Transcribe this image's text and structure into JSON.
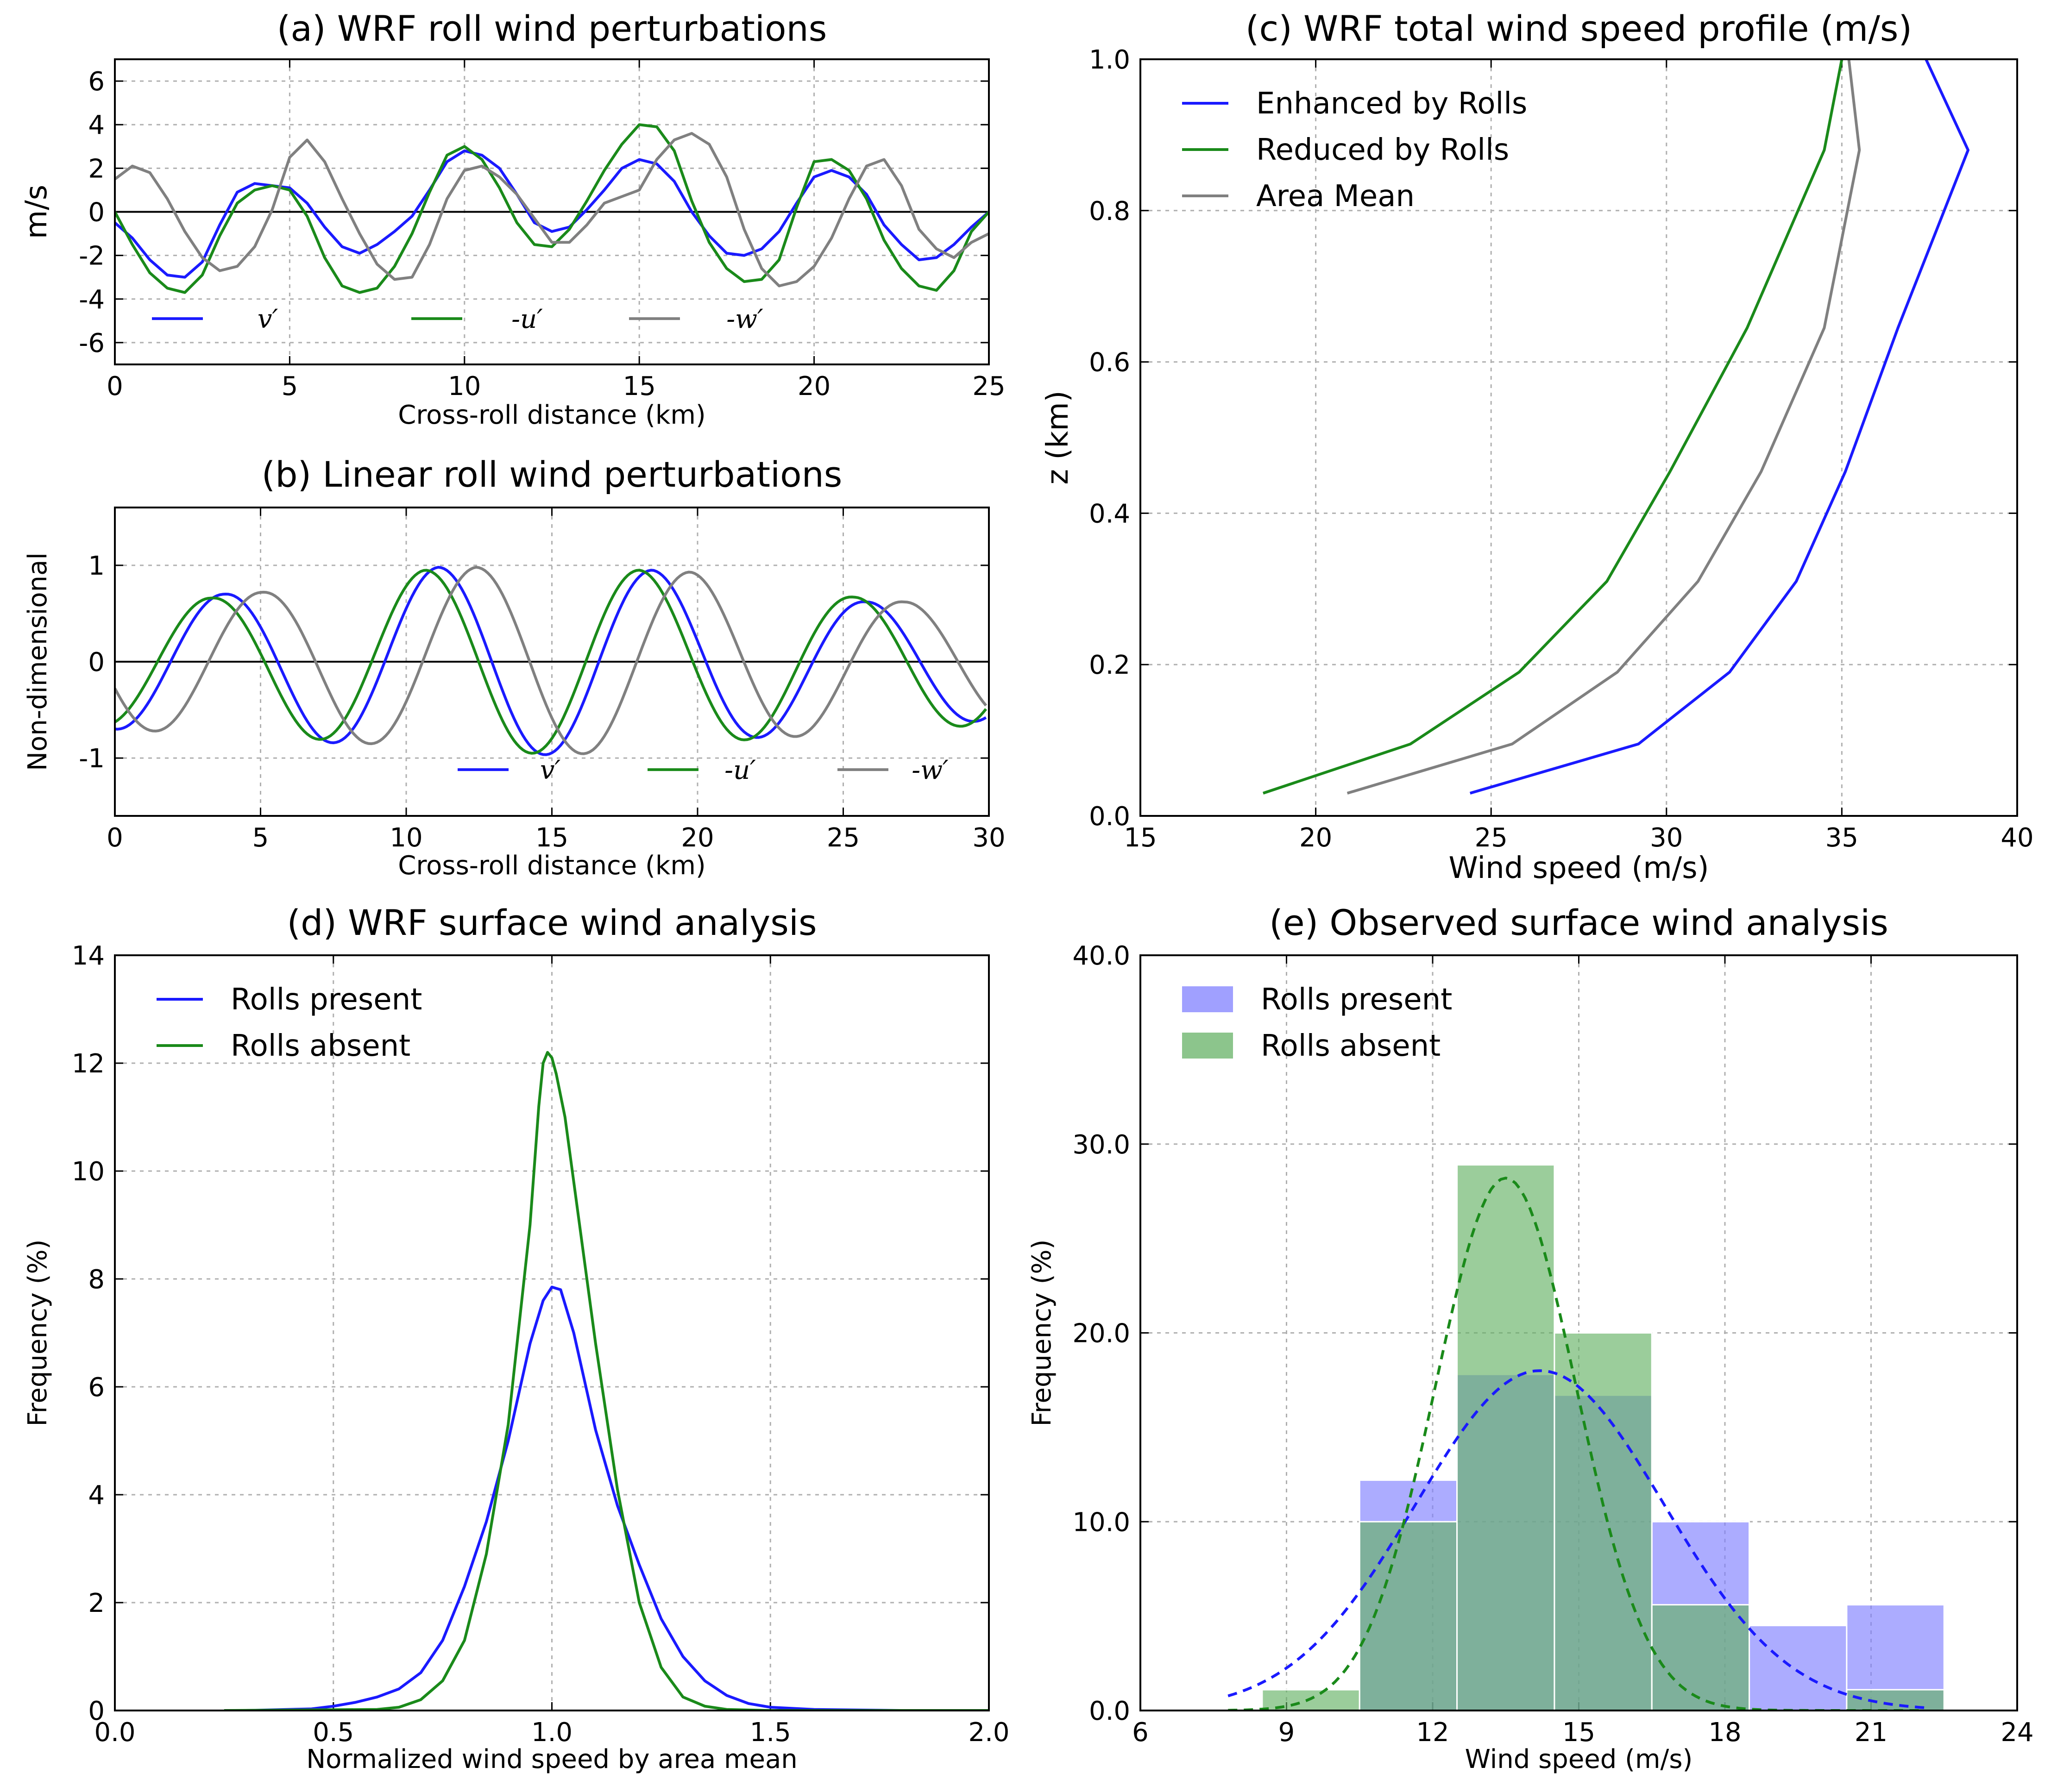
{
  "chart_data": [
    {
      "id": "a",
      "type": "line",
      "title": "(a) WRF roll wind perturbations",
      "xlabel": "Cross-roll distance (km)",
      "ylabel": "m/s",
      "xlim": [
        0,
        25
      ],
      "ylim": [
        -7,
        7
      ],
      "xticks": [
        0,
        5,
        10,
        15,
        20,
        25
      ],
      "yticks": [
        -6,
        -4,
        -2,
        0,
        2,
        4,
        6
      ],
      "grid": true,
      "legend_position": "lower-left",
      "colors": {
        "v": "#1a1aff",
        "u": "#1a8a1a",
        "w": "#808080"
      },
      "x": [
        0,
        0.5,
        1,
        1.5,
        2,
        2.5,
        3,
        3.5,
        4,
        4.5,
        5,
        5.5,
        6,
        6.5,
        7,
        7.5,
        8,
        8.5,
        9,
        9.5,
        10,
        10.5,
        11,
        11.5,
        12,
        12.5,
        13,
        13.5,
        14,
        14.5,
        15,
        15.5,
        16,
        16.5,
        17,
        17.5,
        18,
        18.5,
        19,
        19.5,
        20,
        20.5,
        21,
        21.5,
        22,
        22.5,
        23,
        23.5,
        24,
        24.5,
        25
      ],
      "series": [
        {
          "name": "v′",
          "color": "#1a1aff",
          "values": [
            -0.5,
            -1.2,
            -2.2,
            -2.9,
            -3.0,
            -2.3,
            -0.6,
            0.9,
            1.3,
            1.2,
            1.1,
            0.4,
            -0.7,
            -1.6,
            -1.9,
            -1.5,
            -0.9,
            -0.2,
            1.0,
            2.3,
            2.8,
            2.6,
            2.0,
            0.8,
            -0.5,
            -0.9,
            -0.7,
            0.1,
            1.0,
            2.0,
            2.4,
            2.2,
            1.4,
            0.0,
            -1.1,
            -1.9,
            -2.0,
            -1.7,
            -0.9,
            0.4,
            1.6,
            1.9,
            1.6,
            0.8,
            -0.6,
            -1.5,
            -2.2,
            -2.1,
            -1.5,
            -0.7,
            0.0
          ]
        },
        {
          "name": "-u′",
          "color": "#1a8a1a",
          "values": [
            0.0,
            -1.5,
            -2.8,
            -3.5,
            -3.7,
            -2.9,
            -1.1,
            0.4,
            1.0,
            1.2,
            1.0,
            -0.2,
            -2.1,
            -3.4,
            -3.7,
            -3.5,
            -2.5,
            -1.0,
            0.9,
            2.6,
            3.0,
            2.4,
            1.1,
            -0.5,
            -1.5,
            -1.6,
            -0.8,
            0.5,
            1.9,
            3.1,
            4.0,
            3.9,
            2.8,
            0.5,
            -1.4,
            -2.6,
            -3.2,
            -3.1,
            -2.2,
            0.2,
            2.3,
            2.4,
            1.9,
            0.6,
            -1.3,
            -2.6,
            -3.4,
            -3.6,
            -2.7,
            -0.9,
            0.0
          ]
        },
        {
          "name": "-w′",
          "color": "#808080",
          "values": [
            1.5,
            2.1,
            1.8,
            0.6,
            -0.9,
            -2.1,
            -2.7,
            -2.5,
            -1.6,
            0.1,
            2.5,
            3.3,
            2.3,
            0.6,
            -1.0,
            -2.4,
            -3.1,
            -3.0,
            -1.5,
            0.6,
            1.9,
            2.1,
            1.6,
            0.8,
            -0.3,
            -1.4,
            -1.4,
            -0.6,
            0.4,
            0.7,
            1.0,
            2.4,
            3.3,
            3.6,
            3.1,
            1.6,
            -0.8,
            -2.6,
            -3.4,
            -3.2,
            -2.5,
            -1.2,
            0.6,
            2.1,
            2.4,
            1.2,
            -0.8,
            -1.7,
            -2.1,
            -1.4,
            -1.0
          ]
        }
      ]
    },
    {
      "id": "b",
      "type": "line",
      "title": "(b) Linear roll wind perturbations",
      "xlabel": "Cross-roll distance (km)",
      "ylabel": "Non-dimensional",
      "xlim": [
        0,
        30
      ],
      "ylim": [
        -1.6,
        1.6
      ],
      "xticks": [
        0,
        5,
        10,
        15,
        20,
        25,
        30
      ],
      "yticks": [
        -1,
        0,
        1
      ],
      "grid": true,
      "legend_position": "lower-right",
      "series": [
        {
          "name": "v′",
          "color": "#1a1aff",
          "amplitudes": [
            0.7,
            0.98,
            0.95,
            0.62
          ],
          "phase_km": 0.0
        },
        {
          "name": "-u′",
          "color": "#1a8a1a",
          "amplitudes": [
            0.66,
            0.95,
            0.95,
            0.67
          ],
          "phase_km": -0.45
        },
        {
          "name": "-w′",
          "color": "#808080",
          "amplitudes": [
            0.72,
            0.98,
            0.93,
            0.62
          ],
          "phase_km": 1.3
        }
      ],
      "wavelength_km": 7.35,
      "first_crest_km": 3.75
    },
    {
      "id": "c",
      "type": "line",
      "title": "(c) WRF total wind speed profile (m/s)",
      "xlabel": "Wind speed (m/s)",
      "ylabel": "z (km)",
      "xlim": [
        15,
        40
      ],
      "ylim": [
        0.0,
        1.0
      ],
      "xticks": [
        15,
        20,
        25,
        30,
        35,
        40
      ],
      "yticks": [
        0.0,
        0.2,
        0.4,
        0.6,
        0.8,
        1.0
      ],
      "grid": true,
      "legend_position": "upper-left",
      "series": [
        {
          "name": "Enhanced by Rolls",
          "color": "#1a1aff",
          "points": [
            [
              24.4,
              0.03
            ],
            [
              29.2,
              0.095
            ],
            [
              31.8,
              0.19
            ],
            [
              33.7,
              0.31
            ],
            [
              35.1,
              0.455
            ],
            [
              36.6,
              0.645
            ],
            [
              38.6,
              0.88
            ],
            [
              37.4,
              1.0
            ]
          ]
        },
        {
          "name": "Reduced by Rolls",
          "color": "#1a8a1a",
          "points": [
            [
              18.5,
              0.03
            ],
            [
              22.7,
              0.095
            ],
            [
              25.8,
              0.19
            ],
            [
              28.3,
              0.31
            ],
            [
              30.1,
              0.455
            ],
            [
              32.3,
              0.645
            ],
            [
              34.5,
              0.88
            ],
            [
              35.0,
              1.0
            ]
          ]
        },
        {
          "name": "Area Mean",
          "color": "#808080",
          "points": [
            [
              20.9,
              0.03
            ],
            [
              25.6,
              0.095
            ],
            [
              28.6,
              0.19
            ],
            [
              30.9,
              0.31
            ],
            [
              32.7,
              0.455
            ],
            [
              34.5,
              0.645
            ],
            [
              35.5,
              0.88
            ],
            [
              35.2,
              1.0
            ]
          ]
        }
      ]
    },
    {
      "id": "d",
      "type": "line",
      "title": "(d) WRF surface wind analysis",
      "xlabel": "Normalized wind speed by area mean",
      "ylabel": "Frequency (%)",
      "xlim": [
        0.0,
        2.0
      ],
      "ylim": [
        0,
        14
      ],
      "xticks": [
        0.0,
        0.5,
        1.0,
        1.5,
        2.0
      ],
      "yticks": [
        0,
        2,
        4,
        6,
        8,
        10,
        12,
        14
      ],
      "grid": true,
      "legend_position": "upper-left",
      "series": [
        {
          "name": "Rolls present",
          "color": "#1a1aff",
          "points": [
            [
              0.3,
              0.0
            ],
            [
              0.45,
              0.03
            ],
            [
              0.5,
              0.08
            ],
            [
              0.55,
              0.15
            ],
            [
              0.6,
              0.25
            ],
            [
              0.65,
              0.4
            ],
            [
              0.7,
              0.7
            ],
            [
              0.75,
              1.3
            ],
            [
              0.8,
              2.3
            ],
            [
              0.85,
              3.5
            ],
            [
              0.9,
              5.0
            ],
            [
              0.95,
              6.8
            ],
            [
              0.98,
              7.6
            ],
            [
              1.0,
              7.85
            ],
            [
              1.02,
              7.8
            ],
            [
              1.05,
              7.0
            ],
            [
              1.1,
              5.2
            ],
            [
              1.15,
              3.8
            ],
            [
              1.2,
              2.7
            ],
            [
              1.25,
              1.7
            ],
            [
              1.3,
              1.0
            ],
            [
              1.35,
              0.55
            ],
            [
              1.4,
              0.28
            ],
            [
              1.45,
              0.13
            ],
            [
              1.5,
              0.06
            ],
            [
              1.6,
              0.02
            ],
            [
              1.8,
              0.0
            ],
            [
              2.0,
              0.0
            ]
          ]
        },
        {
          "name": "Rolls absent",
          "color": "#1a8a1a",
          "points": [
            [
              0.25,
              0.0
            ],
            [
              0.6,
              0.02
            ],
            [
              0.65,
              0.06
            ],
            [
              0.7,
              0.2
            ],
            [
              0.75,
              0.55
            ],
            [
              0.8,
              1.3
            ],
            [
              0.85,
              2.9
            ],
            [
              0.9,
              5.3
            ],
            [
              0.95,
              9.0
            ],
            [
              0.97,
              11.2
            ],
            [
              0.98,
              12.0
            ],
            [
              0.99,
              12.2
            ],
            [
              1.0,
              12.1
            ],
            [
              1.01,
              11.8
            ],
            [
              1.03,
              11.0
            ],
            [
              1.05,
              9.8
            ],
            [
              1.1,
              6.8
            ],
            [
              1.15,
              4.1
            ],
            [
              1.2,
              2.0
            ],
            [
              1.25,
              0.8
            ],
            [
              1.3,
              0.25
            ],
            [
              1.35,
              0.08
            ],
            [
              1.4,
              0.02
            ],
            [
              1.5,
              0.0
            ],
            [
              2.0,
              0.0
            ]
          ]
        }
      ]
    },
    {
      "id": "e",
      "type": "bar",
      "title": "(e) Observed surface wind analysis",
      "xlabel": "Wind speed (m/s)",
      "ylabel": "Frequency (%)",
      "xlim": [
        6,
        24
      ],
      "ylim": [
        0,
        40
      ],
      "xticks": [
        6,
        9,
        12,
        15,
        18,
        21,
        24
      ],
      "yticks": [
        "0.0",
        "10.0",
        "20.0",
        "30.0",
        "40.0"
      ],
      "grid": true,
      "legend_position": "upper-left",
      "bin_edges": [
        8.5,
        10.5,
        12.5,
        14.5,
        16.5,
        18.5,
        20.5
      ],
      "series": [
        {
          "name": "Rolls present",
          "color": "#8080ff",
          "values": [
            0.0,
            12.2,
            17.8,
            16.7,
            10.0,
            4.5,
            5.6
          ]
        },
        {
          "name": "Rolls absent",
          "color": "#66b266",
          "values": [
            1.1,
            10.0,
            28.9,
            20.0,
            5.6,
            0.0,
            1.1
          ]
        }
      ],
      "fits": [
        {
          "color": "#1a1aff",
          "mean": 14.2,
          "sigma": 2.55,
          "peak": 18.0
        },
        {
          "color": "#1a8a1a",
          "mean": 13.5,
          "sigma": 1.45,
          "peak": 28.2
        }
      ]
    }
  ]
}
